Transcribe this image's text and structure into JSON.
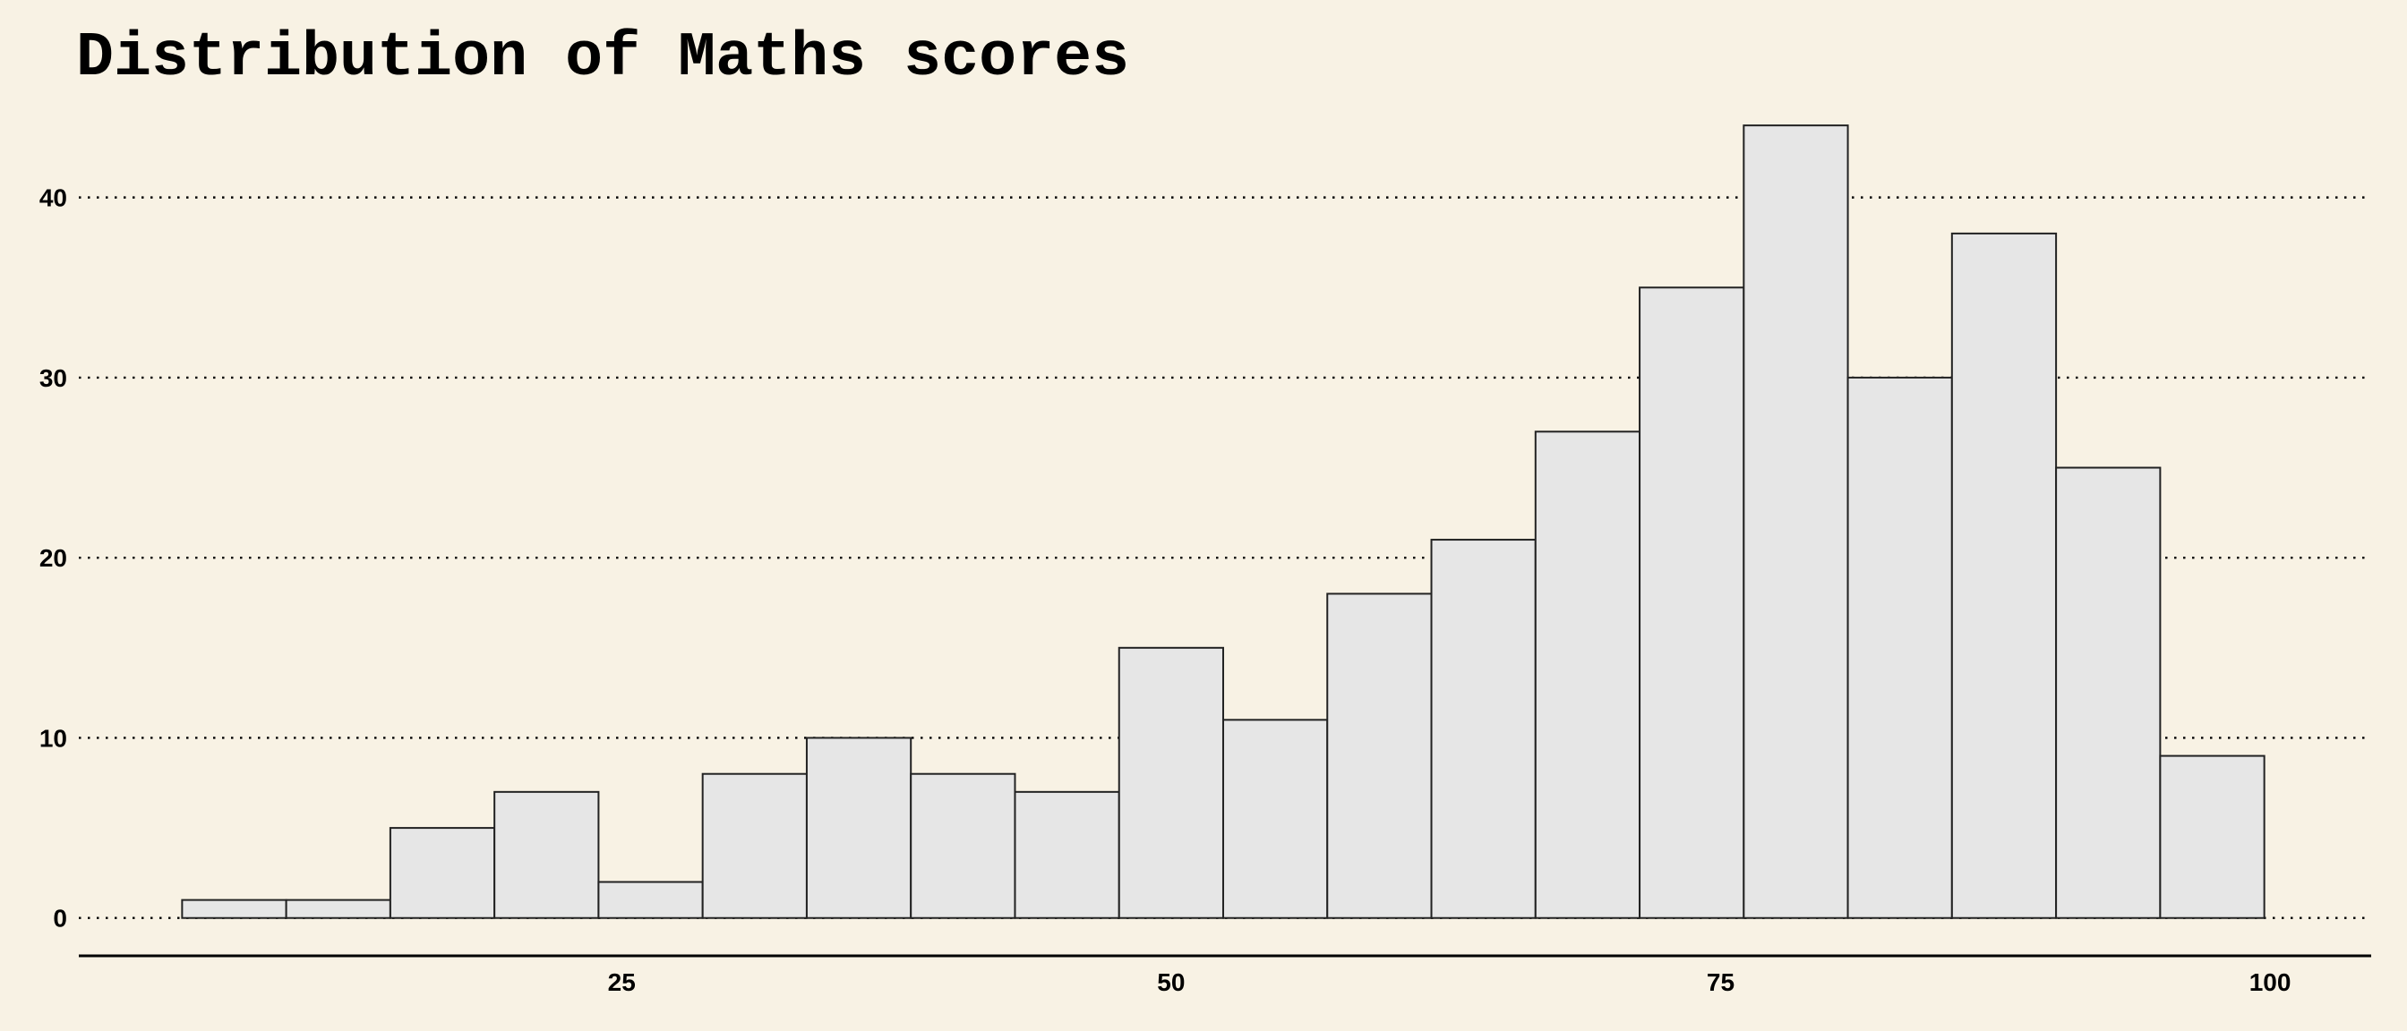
{
  "chart_data": {
    "type": "bar",
    "subtype": "histogram",
    "title": "Distribution of Maths scores",
    "xlabel": "",
    "ylabel": "",
    "bin_width": 4.737,
    "bins": [
      {
        "x0": 5.0,
        "x1": 9.737,
        "count": 1
      },
      {
        "x0": 9.737,
        "x1": 14.474,
        "count": 1
      },
      {
        "x0": 14.474,
        "x1": 19.211,
        "count": 5
      },
      {
        "x0": 19.211,
        "x1": 23.947,
        "count": 7
      },
      {
        "x0": 23.947,
        "x1": 28.684,
        "count": 2
      },
      {
        "x0": 28.684,
        "x1": 33.421,
        "count": 8
      },
      {
        "x0": 33.421,
        "x1": 38.158,
        "count": 10
      },
      {
        "x0": 38.158,
        "x1": 42.895,
        "count": 8
      },
      {
        "x0": 42.895,
        "x1": 47.632,
        "count": 7
      },
      {
        "x0": 47.632,
        "x1": 52.368,
        "count": 15
      },
      {
        "x0": 52.368,
        "x1": 57.105,
        "count": 11
      },
      {
        "x0": 57.105,
        "x1": 61.842,
        "count": 18
      },
      {
        "x0": 61.842,
        "x1": 66.579,
        "count": 21
      },
      {
        "x0": 66.579,
        "x1": 71.316,
        "count": 27
      },
      {
        "x0": 71.316,
        "x1": 76.053,
        "count": 35
      },
      {
        "x0": 76.053,
        "x1": 80.789,
        "count": 44
      },
      {
        "x0": 80.789,
        "x1": 85.526,
        "count": 30
      },
      {
        "x0": 85.526,
        "x1": 90.263,
        "count": 38
      },
      {
        "x0": 90.263,
        "x1": 95.0,
        "count": 25
      },
      {
        "x0": 95.0,
        "x1": 99.737,
        "count": 9
      }
    ],
    "xlim": [
      0.3,
      104.6
    ],
    "ylim": [
      -2.1,
      45.0
    ],
    "x_ticks": [
      25,
      50,
      75,
      100
    ],
    "y_ticks": [
      0,
      10,
      20,
      30,
      40
    ],
    "grid": "horizontal dotted",
    "legend": "none",
    "colors": {
      "background": "#f8f2e4",
      "bar_fill": "#e6e6e6",
      "bar_outline": "#222222",
      "text": "#000000"
    }
  }
}
